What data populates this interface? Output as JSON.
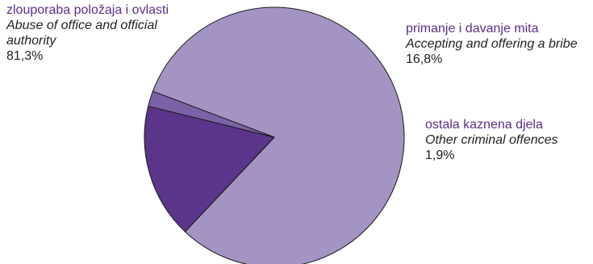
{
  "chart_data": {
    "type": "pie",
    "title": "",
    "slices": [
      {
        "label_hr": "zlouporaba položaja i ovlasti",
        "label_en_1": "Abuse of office and official",
        "label_en_2": "authority",
        "value": 81.3,
        "value_label": "81,3%",
        "color": "#a394c3"
      },
      {
        "label_hr": "primanje i davanje mita",
        "label_en_1": "Accepting and offering a bribe",
        "value": 16.8,
        "value_label": "16,8%",
        "color": "#5a3589"
      },
      {
        "label_hr": "ostala kaznena djela",
        "label_en_1": "Other criminal offences",
        "value": 1.9,
        "value_label": "1,9%",
        "color": "#7b62a8"
      }
    ]
  }
}
